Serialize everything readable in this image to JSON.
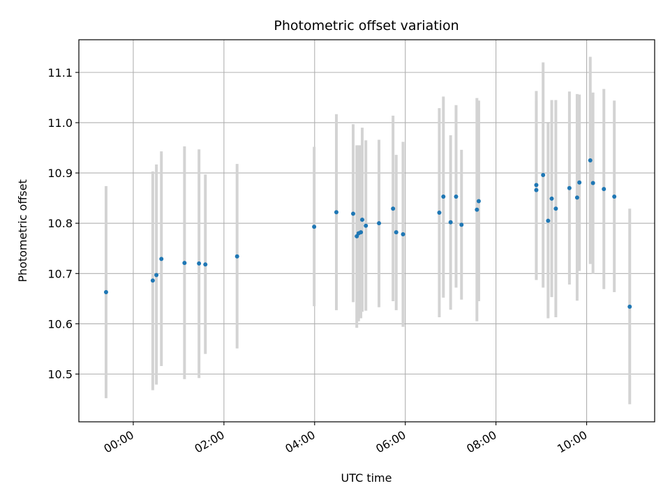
{
  "chart_data": {
    "type": "scatter",
    "title": "Photometric offset variation",
    "xlabel": "UTC time",
    "ylabel": "Photometric offset",
    "x_unit": "hours UTC",
    "xlim": [
      -1.2,
      11.5
    ],
    "ylim": [
      10.405,
      11.165
    ],
    "x_ticks": [
      {
        "value": 0,
        "label": "00:00"
      },
      {
        "value": 2,
        "label": "02:00"
      },
      {
        "value": 4,
        "label": "04:00"
      },
      {
        "value": 6,
        "label": "06:00"
      },
      {
        "value": 8,
        "label": "08:00"
      },
      {
        "value": 10,
        "label": "10:00"
      }
    ],
    "y_ticks": [
      {
        "value": 10.5,
        "label": "10.5"
      },
      {
        "value": 10.6,
        "label": "10.6"
      },
      {
        "value": 10.7,
        "label": "10.7"
      },
      {
        "value": 10.8,
        "label": "10.8"
      },
      {
        "value": 10.9,
        "label": "10.9"
      },
      {
        "value": 11.0,
        "label": "11.0"
      },
      {
        "value": 11.1,
        "label": "11.1"
      }
    ],
    "grid": true,
    "marker_color": "#1f77b4",
    "errorbar_color": "#d3d3d3",
    "points": [
      {
        "x": -0.6,
        "y": 10.663,
        "ylow": 10.452,
        "yhigh": 10.874
      },
      {
        "x": 0.43,
        "y": 10.686,
        "ylow": 10.468,
        "yhigh": 10.903
      },
      {
        "x": 0.51,
        "y": 10.697,
        "ylow": 10.479,
        "yhigh": 10.917
      },
      {
        "x": 0.62,
        "y": 10.729,
        "ylow": 10.516,
        "yhigh": 10.943
      },
      {
        "x": 1.13,
        "y": 10.721,
        "ylow": 10.49,
        "yhigh": 10.953
      },
      {
        "x": 1.45,
        "y": 10.72,
        "ylow": 10.492,
        "yhigh": 10.947
      },
      {
        "x": 1.59,
        "y": 10.718,
        "ylow": 10.54,
        "yhigh": 10.897
      },
      {
        "x": 2.29,
        "y": 10.734,
        "ylow": 10.551,
        "yhigh": 10.918
      },
      {
        "x": 3.99,
        "y": 10.793,
        "ylow": 10.635,
        "yhigh": 10.952
      },
      {
        "x": 4.48,
        "y": 10.822,
        "ylow": 10.627,
        "yhigh": 11.017
      },
      {
        "x": 4.85,
        "y": 10.819,
        "ylow": 10.643,
        "yhigh": 10.997
      },
      {
        "x": 4.93,
        "y": 10.774,
        "ylow": 10.592,
        "yhigh": 10.955
      },
      {
        "x": 4.97,
        "y": 10.78,
        "ylow": 10.605,
        "yhigh": 10.955
      },
      {
        "x": 5.02,
        "y": 10.782,
        "ylow": 10.611,
        "yhigh": 10.955
      },
      {
        "x": 5.05,
        "y": 10.807,
        "ylow": 10.624,
        "yhigh": 10.99
      },
      {
        "x": 5.13,
        "y": 10.795,
        "ylow": 10.626,
        "yhigh": 10.965
      },
      {
        "x": 5.42,
        "y": 10.8,
        "ylow": 10.633,
        "yhigh": 10.966
      },
      {
        "x": 5.73,
        "y": 10.829,
        "ylow": 10.645,
        "yhigh": 11.014
      },
      {
        "x": 5.8,
        "y": 10.782,
        "ylow": 10.627,
        "yhigh": 10.936
      },
      {
        "x": 5.95,
        "y": 10.778,
        "ylow": 10.594,
        "yhigh": 10.962
      },
      {
        "x": 6.75,
        "y": 10.821,
        "ylow": 10.613,
        "yhigh": 11.029
      },
      {
        "x": 6.84,
        "y": 10.853,
        "ylow": 10.652,
        "yhigh": 11.052
      },
      {
        "x": 7.0,
        "y": 10.802,
        "ylow": 10.628,
        "yhigh": 10.975
      },
      {
        "x": 7.12,
        "y": 10.853,
        "ylow": 10.672,
        "yhigh": 11.035
      },
      {
        "x": 7.24,
        "y": 10.797,
        "ylow": 10.648,
        "yhigh": 10.946
      },
      {
        "x": 7.58,
        "y": 10.827,
        "ylow": 10.605,
        "yhigh": 11.049
      },
      {
        "x": 7.62,
        "y": 10.844,
        "ylow": 10.645,
        "yhigh": 11.044
      },
      {
        "x": 8.89,
        "y": 10.866,
        "ylow": 10.687,
        "yhigh": 11.044
      },
      {
        "x": 8.89,
        "y": 10.876,
        "ylow": 10.689,
        "yhigh": 11.063
      },
      {
        "x": 9.04,
        "y": 10.896,
        "ylow": 10.672,
        "yhigh": 11.12
      },
      {
        "x": 9.15,
        "y": 10.805,
        "ylow": 10.611,
        "yhigh": 10.999
      },
      {
        "x": 9.23,
        "y": 10.849,
        "ylow": 10.653,
        "yhigh": 11.045
      },
      {
        "x": 9.32,
        "y": 10.829,
        "ylow": 10.613,
        "yhigh": 11.045
      },
      {
        "x": 9.62,
        "y": 10.87,
        "ylow": 10.678,
        "yhigh": 11.062
      },
      {
        "x": 9.79,
        "y": 10.851,
        "ylow": 10.646,
        "yhigh": 11.057
      },
      {
        "x": 9.84,
        "y": 10.881,
        "ylow": 10.705,
        "yhigh": 11.056
      },
      {
        "x": 10.08,
        "y": 10.925,
        "ylow": 10.719,
        "yhigh": 11.131
      },
      {
        "x": 10.14,
        "y": 10.88,
        "ylow": 10.699,
        "yhigh": 11.06
      },
      {
        "x": 10.38,
        "y": 10.868,
        "ylow": 10.669,
        "yhigh": 11.067
      },
      {
        "x": 10.61,
        "y": 10.853,
        "ylow": 10.663,
        "yhigh": 11.044
      },
      {
        "x": 10.95,
        "y": 10.634,
        "ylow": 10.44,
        "yhigh": 10.829
      }
    ]
  }
}
